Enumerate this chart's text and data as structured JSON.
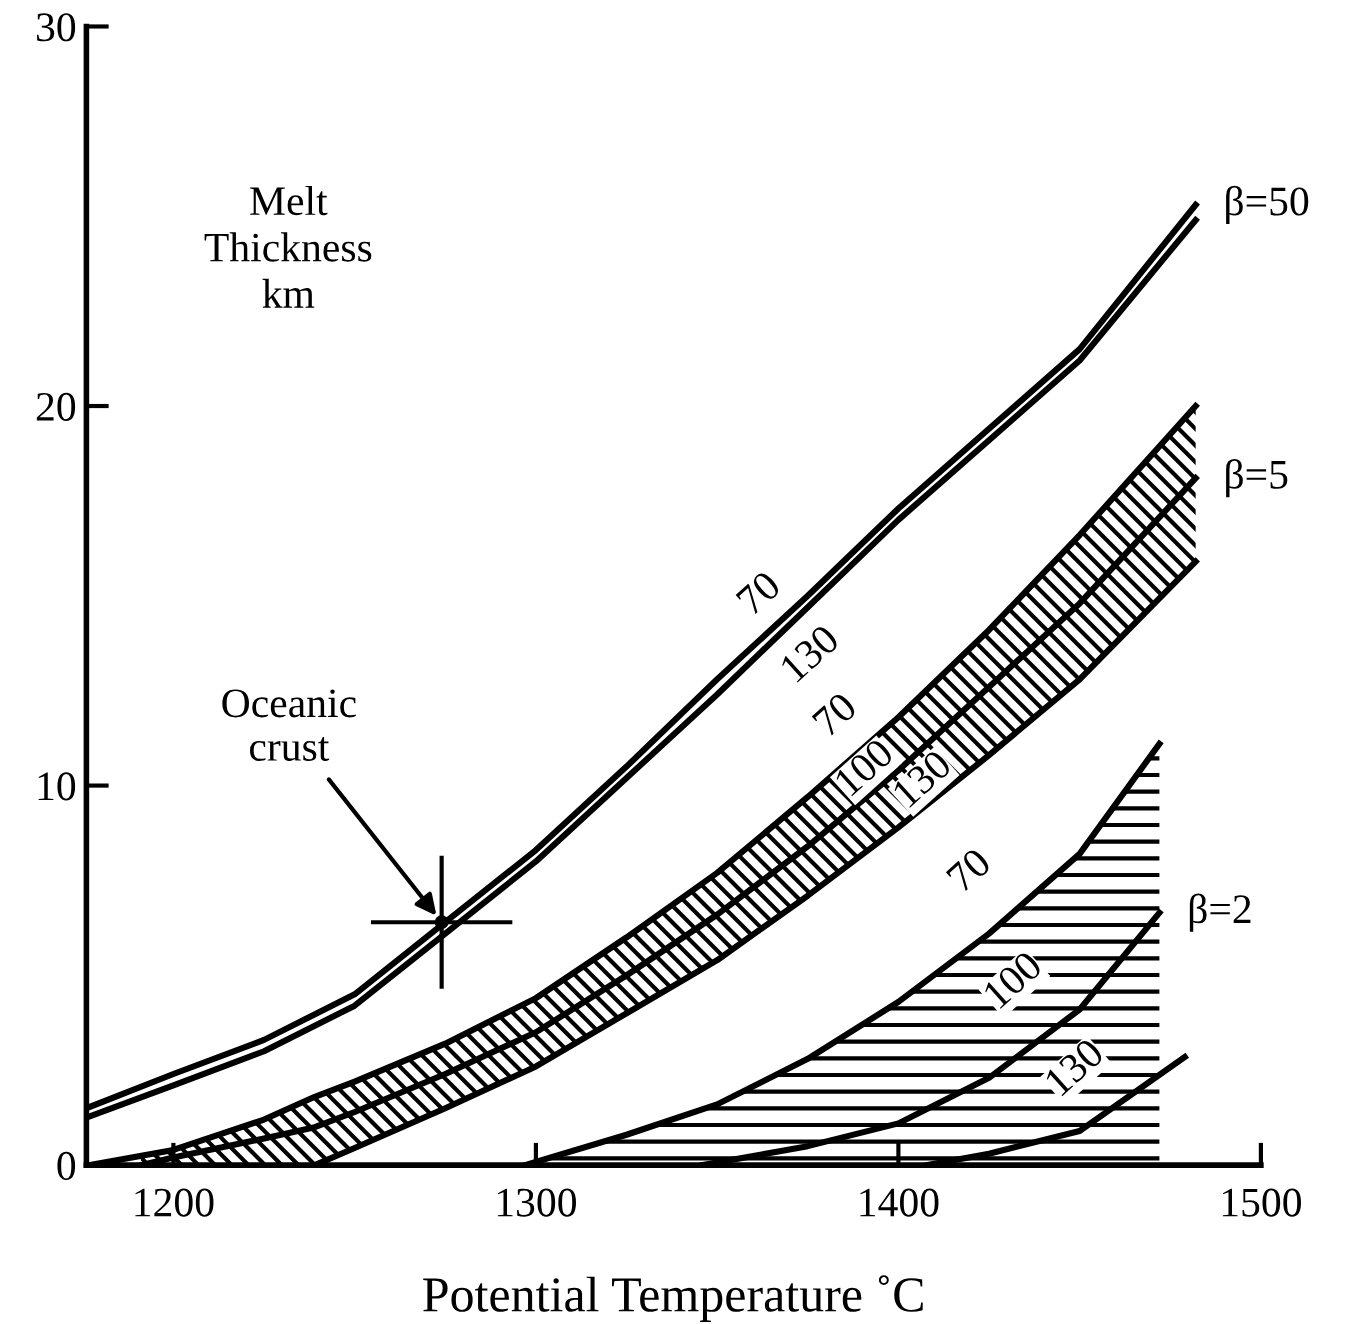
{
  "chart_data": {
    "type": "line",
    "xlabel": "Potential Temperature ˚C",
    "ylabel": "Melt\nThickness\nkm",
    "xlim": [
      1176,
      1500
    ],
    "xticks": [
      1200,
      1300,
      1400,
      1500
    ],
    "ylim": [
      0,
      30
    ],
    "yticks": [
      0,
      10,
      20,
      30
    ],
    "grid": false,
    "legend": false,
    "line_style": "solid",
    "series": [
      {
        "color": "#000000",
        "x": [
          1176,
          1200,
          1225,
          1250,
          1275,
          1300,
          1325,
          1350,
          1375,
          1400,
          1425,
          1450,
          1482
        ],
        "values": [
          1.5,
          2.4,
          3.3,
          4.5,
          6.4,
          8.3,
          10.5,
          12.8,
          15.0,
          17.3,
          19.4,
          21.5,
          25.3
        ]
      },
      {
        "color": "#000000",
        "x": [
          1176,
          1200,
          1225,
          1250,
          1275,
          1300,
          1325,
          1350,
          1375,
          1400,
          1425,
          1450,
          1482
        ],
        "values": [
          1.25,
          2.1,
          3.0,
          4.2,
          6.1,
          8.0,
          10.2,
          12.4,
          14.7,
          17.0,
          19.1,
          21.2,
          24.9
        ]
      },
      {
        "color": "#000000",
        "x": [
          1177,
          1200,
          1225,
          1239,
          1250,
          1275,
          1300,
          1325,
          1350,
          1375,
          1400,
          1425,
          1450,
          1482
        ],
        "values": [
          0,
          0.4,
          1.2,
          1.8,
          2.2,
          3.2,
          4.4,
          6.0,
          7.7,
          9.7,
          11.8,
          14.1,
          16.6,
          20.0
        ]
      },
      {
        "color": "#000000",
        "x": [
          1191,
          1200,
          1225,
          1239,
          1250,
          1275,
          1300,
          1325,
          1350,
          1375,
          1400,
          1425,
          1450,
          1482
        ],
        "values": [
          0,
          0.2,
          0.7,
          1.0,
          1.4,
          2.4,
          3.5,
          5.0,
          6.6,
          8.4,
          10.4,
          12.6,
          14.8,
          18.1
        ],
        "upper": [
          0.25,
          0.4,
          1.2,
          1.8,
          2.2,
          3.2,
          4.4,
          6.0,
          7.7,
          9.7,
          11.8,
          14.1,
          16.6,
          20.0
        ],
        "lower": [
          0,
          0,
          0,
          0,
          0.45,
          1.5,
          2.6,
          4.0,
          5.4,
          7.1,
          8.9,
          10.8,
          12.8,
          15.9
        ]
      },
      {
        "color": "#000000",
        "x": [
          1239,
          1250,
          1275,
          1300,
          1325,
          1350,
          1375,
          1400,
          1425,
          1450,
          1482
        ],
        "values": [
          0,
          0.45,
          1.5,
          2.6,
          4.0,
          5.4,
          7.1,
          8.9,
          10.8,
          12.8,
          15.9
        ]
      },
      {
        "type": "area",
        "color": "#000000",
        "x": [
          1297,
          1325,
          1350,
          1375,
          1400,
          1425,
          1450,
          1472
        ],
        "values": [
          0,
          0.8,
          1.6,
          2.8,
          4.3,
          6.1,
          8.2,
          11.1
        ]
      },
      {
        "color": "#000000",
        "x": [
          1346,
          1375,
          1400,
          1425,
          1450,
          1472
        ],
        "values": [
          0,
          0.5,
          1.1,
          2.3,
          4.1,
          6.65
        ]
      },
      {
        "color": "#000000",
        "x": [
          1408,
          1425,
          1450,
          1479
        ],
        "values": [
          0,
          0.3,
          0.9,
          2.85
        ]
      },
      {
        "type": "scatter",
        "marker": "circle",
        "color": "#000000",
        "x": [
          1274
        ],
        "values": [
          6.4
        ],
        "errors": [
          1.75
        ],
        "xerrors": [
          19.5
        ]
      }
    ],
    "annotations": [
      {
        "text": "70",
        "x": 1362,
        "y": 15.0
      },
      {
        "text": "130",
        "x": 1376,
        "y": 13.4
      },
      {
        "text": "70",
        "x": 1383,
        "y": 11.8
      },
      {
        "text": "100",
        "x": 1391,
        "y": 10.4
      },
      {
        "text": "130",
        "x": 1407,
        "y": 10.1
      },
      {
        "text": "70",
        "x": 1420,
        "y": 7.7
      },
      {
        "text": "100",
        "x": 1432,
        "y": 4.8
      },
      {
        "text": "130",
        "x": 1449,
        "y": 2.5
      },
      {
        "text": "β=50",
        "x": 1482,
        "y": 25.3
      },
      {
        "text": "β=5",
        "x": 1482,
        "y": 18.1
      },
      {
        "text": "β=2",
        "x": 1472,
        "y": 6.65
      },
      {
        "text": "Oceanic\ncrust",
        "x": 1274,
        "y": 6.4
      }
    ]
  }
}
